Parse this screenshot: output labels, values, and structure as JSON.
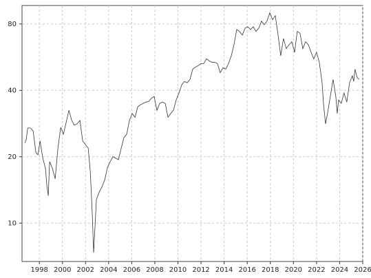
{
  "chart_data": {
    "type": "line",
    "log_y": true,
    "grid": true,
    "color": "#333333",
    "x": [
      1996.75,
      1996.87,
      1996.99,
      1997.22,
      1997.46,
      1997.7,
      1997.88,
      1998.06,
      1998.3,
      1998.53,
      1998.65,
      1998.77,
      1998.89,
      1999.13,
      1999.37,
      1999.61,
      1999.85,
      2000.08,
      2000.32,
      2000.56,
      2000.8,
      2001.03,
      2001.27,
      2001.51,
      2001.75,
      2001.99,
      2002.23,
      2002.41,
      2002.58,
      2002.7,
      2002.94,
      2003.18,
      2003.42,
      2003.66,
      2003.9,
      2004.13,
      2004.37,
      2004.61,
      2004.85,
      2005.09,
      2005.32,
      2005.56,
      2005.8,
      2006.04,
      2006.28,
      2006.52,
      2006.75,
      2006.99,
      2007.23,
      2007.47,
      2007.71,
      2007.94,
      2008.18,
      2008.42,
      2008.66,
      2008.9,
      2009.14,
      2009.37,
      2009.61,
      2009.85,
      2010.09,
      2010.33,
      2010.56,
      2010.8,
      2011.04,
      2011.28,
      2011.52,
      2011.76,
      2011.99,
      2012.23,
      2012.47,
      2012.71,
      2012.95,
      2013.19,
      2013.42,
      2013.66,
      2013.9,
      2014.14,
      2014.38,
      2014.62,
      2014.85,
      2015.09,
      2015.33,
      2015.57,
      2015.81,
      2016.04,
      2016.28,
      2016.52,
      2016.76,
      2017.0,
      2017.24,
      2017.47,
      2017.71,
      2017.95,
      2018.19,
      2018.43,
      2018.67,
      2018.9,
      2019.14,
      2019.38,
      2019.62,
      2019.86,
      2020.1,
      2020.33,
      2020.57,
      2020.81,
      2021.05,
      2021.29,
      2021.53,
      2021.76,
      2022.0,
      2022.24,
      2022.48,
      2022.6,
      2022.78,
      2022.95,
      2023.19,
      2023.43,
      2023.67,
      2023.79,
      2023.91,
      2024.14,
      2024.38,
      2024.62,
      2024.86,
      2025.1,
      2025.22,
      2025.33,
      2025.51,
      2025.69
    ],
    "values": [
      23.1,
      24,
      27,
      27,
      26.2,
      20.9,
      20.4,
      23.6,
      19.7,
      17.7,
      14.8,
      13.3,
      19,
      17.7,
      15.9,
      21.9,
      27.2,
      25.3,
      28.6,
      32.5,
      29.2,
      27.8,
      28.2,
      29.2,
      23.6,
      22.7,
      21.9,
      17.1,
      11.1,
      7.35,
      12.8,
      13.8,
      14.6,
      15.7,
      17.9,
      19,
      20,
      19.7,
      19.4,
      21.9,
      24.4,
      25.3,
      29.2,
      31.4,
      30.2,
      33.7,
      34.4,
      34.9,
      35.4,
      35.6,
      36.9,
      37.5,
      32.5,
      34.9,
      35.4,
      34.9,
      30.2,
      31.4,
      32.5,
      36.2,
      38.9,
      42.4,
      43.9,
      43.3,
      44.8,
      49.9,
      51,
      51.8,
      52.9,
      52.9,
      55.6,
      54.4,
      53.6,
      53.6,
      52.9,
      48.1,
      50.6,
      49.9,
      52.9,
      57.4,
      64.4,
      75.5,
      74,
      71.2,
      76.6,
      77.7,
      75.5,
      77.7,
      74,
      76.6,
      82.4,
      79.4,
      82.4,
      89.9,
      83.6,
      87.3,
      71.2,
      57.4,
      68.8,
      61.8,
      64.4,
      66.4,
      59.5,
      74,
      72.6,
      61.8,
      66.4,
      64.4,
      59.5,
      55.6,
      59.5,
      53.6,
      43.3,
      34.9,
      28.2,
      31.4,
      37.5,
      44.8,
      37.5,
      31.4,
      36.2,
      34.9,
      38.9,
      35.4,
      43.3,
      46.5,
      43.9,
      49.9,
      45.8,
      44.8
    ],
    "xlim": [
      1996.5,
      2026
    ],
    "xticks": [
      1998,
      2000,
      2002,
      2004,
      2006,
      2008,
      2010,
      2012,
      2014,
      2016,
      2018,
      2020,
      2022,
      2024,
      2026
    ],
    "ylim": [
      6.7,
      97
    ],
    "yticks": [
      10,
      20,
      40,
      80
    ]
  }
}
